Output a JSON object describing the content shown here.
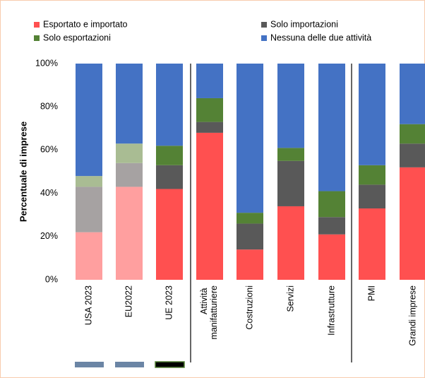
{
  "chart_data": {
    "type": "stacked_bar",
    "y_label": "Percentuale di imprese",
    "categories": [
      "USA 2023",
      "EU2022",
      "UE 2023",
      "Attività manifatturiere",
      "Costruzioni",
      "Servizi",
      "Infrastrutture",
      "PMI",
      "Grandi imprese"
    ],
    "series": [
      {
        "name": "Esportato e importato",
        "color": "#ff5050",
        "colors": [
          "#ff9f9f",
          "#ff9f9f",
          "#ff5050",
          "#ff5050",
          "#ff5050",
          "#ff5050",
          "#ff5050",
          "#ff5050",
          "#ff5050"
        ],
        "values": [
          22,
          43,
          42,
          68,
          14,
          34,
          21,
          33,
          52
        ]
      },
      {
        "name": "Solo importazioni",
        "color": "#595959",
        "colors": [
          "#a6a2a2",
          "#a6a2a2",
          "#595959",
          "#595959",
          "#595959",
          "#595959",
          "#595959",
          "#595959",
          "#595959"
        ],
        "values": [
          21,
          11,
          11,
          5,
          12,
          21,
          8,
          11,
          11
        ]
      },
      {
        "name": "Solo esportazioni",
        "color": "#548235",
        "colors": [
          "#a9bc93",
          "#a9bc93",
          "#548235",
          "#548235",
          "#548235",
          "#548235",
          "#548235",
          "#548235",
          "#548235"
        ],
        "values": [
          5,
          9,
          9,
          11,
          5,
          6,
          12,
          9,
          9
        ]
      },
      {
        "name": "Nessuna delle due attività",
        "color": "#4472c4",
        "colors": [
          "#4472c4",
          "#4472c4",
          "#4472c4",
          "#4472c4",
          "#4472c4",
          "#4472c4",
          "#4472c4",
          "#4472c4",
          "#4472c4"
        ],
        "values": [
          52,
          37,
          38,
          16,
          69,
          39,
          59,
          47,
          28
        ]
      }
    ],
    "ylim": [
      0,
      100
    ],
    "yticks": [
      {
        "value": 0,
        "label": "0%"
      },
      {
        "value": 20,
        "label": "20%"
      },
      {
        "value": 40,
        "label": "40%"
      },
      {
        "value": 60,
        "label": "60%"
      },
      {
        "value": 80,
        "label": "80%"
      },
      {
        "value": 100,
        "label": "100%"
      }
    ]
  }
}
